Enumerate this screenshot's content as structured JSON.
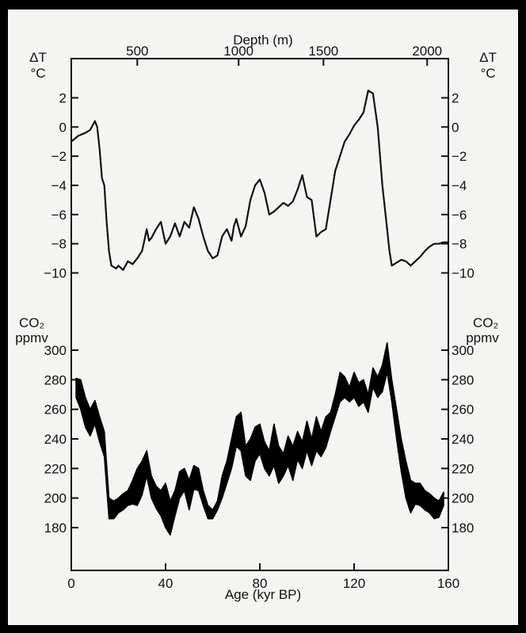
{
  "chart_data": [
    {
      "type": "line",
      "xlabel": "Age (kyr BP)",
      "x_ticks": [
        0,
        40,
        80,
        120,
        160
      ],
      "xlim": [
        0,
        160
      ],
      "top_axis": {
        "title": "Depth (m)",
        "ticks": [
          {
            "label": "500",
            "age": 28
          },
          {
            "label": "1000",
            "age": 71
          },
          {
            "label": "1500",
            "age": 107
          },
          {
            "label": "2000",
            "age": 151
          }
        ]
      },
      "ylabel": "ΔT °C",
      "ylabel_line1": "ΔT",
      "ylabel_line2": "°C",
      "y_ticks": [
        2,
        0,
        -2,
        -4,
        -6,
        -8,
        -10
      ],
      "y_tick_labels": [
        "2",
        "0",
        "−2",
        "−4",
        "−6",
        "−8",
        "−10"
      ],
      "ylim": [
        -10.5,
        3
      ],
      "series": [
        {
          "color": "#111111",
          "x": [
            0,
            3,
            6,
            8,
            10,
            11,
            12,
            13,
            14,
            15,
            16,
            17,
            18,
            19,
            20,
            22,
            24,
            26,
            28,
            30,
            31,
            32,
            33,
            34,
            36,
            38,
            40,
            42,
            44,
            46,
            48,
            50,
            52,
            54,
            56,
            58,
            60,
            62,
            64,
            66,
            68,
            69,
            70,
            72,
            74,
            76,
            78,
            80,
            82,
            84,
            86,
            88,
            90,
            92,
            94,
            96,
            98,
            100,
            102,
            104,
            106,
            108,
            110,
            112,
            114,
            116,
            118,
            120,
            122,
            124,
            126,
            128,
            130,
            132,
            134,
            135,
            136,
            138,
            140,
            142,
            144,
            146,
            148,
            150,
            152,
            154,
            156,
            158,
            160
          ],
          "y": [
            -1,
            -0.6,
            -0.4,
            -0.2,
            0.4,
            0,
            -1.5,
            -3.5,
            -4,
            -6.5,
            -8.5,
            -9.5,
            -9.6,
            -9.7,
            -9.5,
            -9.8,
            -9.2,
            -9.4,
            -9,
            -8.5,
            -7.8,
            -7,
            -7.8,
            -7.6,
            -7,
            -6.5,
            -8,
            -7.5,
            -6.6,
            -7.5,
            -6.5,
            -6.9,
            -5.5,
            -6.3,
            -7.5,
            -8.5,
            -9,
            -8.8,
            -7.5,
            -7,
            -7.8,
            -6.8,
            -6.3,
            -7.5,
            -6.8,
            -5,
            -4,
            -3.6,
            -4.5,
            -6,
            -5.8,
            -5.5,
            -5.2,
            -5.4,
            -5.1,
            -4.3,
            -3.3,
            -4.8,
            -5,
            -7.5,
            -7.2,
            -7,
            -5,
            -3,
            -2,
            -1,
            -0.5,
            0.1,
            0.5,
            1,
            2.5,
            2.3,
            0,
            -4,
            -7,
            -8.5,
            -9.5,
            -9.3,
            -9.1,
            -9.2,
            -9.5,
            -9.2,
            -8.9,
            -8.5,
            -8.2,
            -8,
            -8,
            -7.9,
            -7.9
          ]
        }
      ]
    },
    {
      "type": "area",
      "xlabel": "Age (kyr BP)",
      "x_ticks": [
        0,
        40,
        80,
        120,
        160
      ],
      "xlim": [
        0,
        160
      ],
      "ylabel": "CO₂ ppmv",
      "ylabel_line1": "CO₂",
      "ylabel_line2": "ppmv",
      "y_ticks": [
        300,
        280,
        260,
        240,
        220,
        200,
        180
      ],
      "y_tick_labels": [
        "300",
        "280",
        "260",
        "240",
        "220",
        "200",
        "180"
      ],
      "ylim": [
        165,
        310
      ],
      "series": [
        {
          "color": "#000000",
          "x": [
            2,
            4,
            6,
            8,
            10,
            12,
            14,
            16,
            18,
            20,
            22,
            24,
            26,
            28,
            30,
            32,
            34,
            36,
            38,
            40,
            42,
            44,
            46,
            48,
            50,
            52,
            54,
            56,
            58,
            60,
            62,
            64,
            66,
            68,
            70,
            72,
            74,
            76,
            78,
            80,
            82,
            84,
            86,
            88,
            90,
            92,
            94,
            96,
            98,
            100,
            102,
            104,
            106,
            108,
            110,
            112,
            114,
            116,
            118,
            120,
            122,
            124,
            126,
            128,
            130,
            132,
            134,
            136,
            138,
            140,
            142,
            144,
            146,
            148,
            150,
            152,
            154,
            156,
            158
          ],
          "upper": [
            281,
            280,
            268,
            260,
            266,
            255,
            245,
            200,
            198,
            200,
            203,
            205,
            212,
            220,
            225,
            232,
            215,
            208,
            205,
            210,
            198,
            205,
            218,
            220,
            212,
            222,
            220,
            205,
            195,
            192,
            198,
            215,
            225,
            240,
            255,
            258,
            235,
            240,
            248,
            250,
            238,
            232,
            250,
            235,
            230,
            242,
            235,
            245,
            238,
            252,
            240,
            255,
            245,
            255,
            258,
            270,
            285,
            282,
            275,
            285,
            278,
            280,
            270,
            288,
            282,
            290,
            305,
            280,
            260,
            240,
            225,
            212,
            210,
            210,
            205,
            203,
            200,
            198,
            204
          ],
          "lower": [
            268,
            260,
            248,
            242,
            250,
            238,
            228,
            186,
            186,
            190,
            192,
            195,
            196,
            195,
            202,
            215,
            200,
            193,
            188,
            180,
            175,
            188,
            200,
            205,
            192,
            206,
            205,
            195,
            186,
            186,
            192,
            200,
            210,
            220,
            235,
            232,
            215,
            212,
            225,
            230,
            220,
            215,
            222,
            210,
            215,
            222,
            212,
            226,
            220,
            232,
            222,
            232,
            228,
            234,
            245,
            255,
            265,
            268,
            265,
            268,
            262,
            265,
            258,
            275,
            268,
            272,
            285,
            265,
            240,
            218,
            200,
            190,
            196,
            195,
            192,
            190,
            186,
            187,
            195
          ]
        }
      ]
    }
  ]
}
